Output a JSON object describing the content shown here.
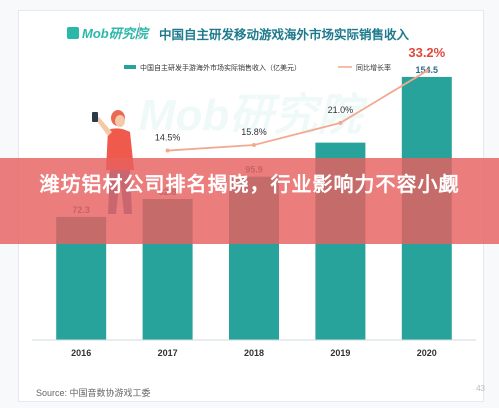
{
  "header": {
    "logo_text": "Mob研究院",
    "title": "中国自主研发移动游戏海外市场实际销售收入"
  },
  "banner": {
    "text": "潍坊铝材公司排名揭晓，行业影响力不容小觑"
  },
  "footer": {
    "source": "Source:   中国音数协游戏工委",
    "page_number": "43"
  },
  "watermark": "Mob研究院",
  "chart_data": {
    "type": "bar",
    "categories": [
      "2016",
      "2017",
      "2018",
      "2019",
      "2020"
    ],
    "series": [
      {
        "name": "中国自主研发手游海外市场实际销售收入（亿美元）",
        "kind": "bar",
        "color": "#27a39b",
        "values": [
          72.3,
          82.8,
          95.9,
          115.9,
          154.5
        ],
        "labels": [
          "72.3",
          "82.8",
          "95.9",
          "",
          "154.5"
        ]
      },
      {
        "name": "同比增长率",
        "kind": "line",
        "color": "#f2a98e",
        "values": [
          null,
          14.5,
          15.8,
          21.0,
          33.2
        ],
        "labels": [
          "",
          "14.5%",
          "15.8%",
          "21.0%",
          "33.2%"
        ]
      }
    ],
    "ylim": [
      0,
      175
    ],
    "y2lim": [
      -30,
      40
    ],
    "highlight": {
      "index": 4,
      "color": "#e0473d"
    },
    "grid": false,
    "legend": "top"
  }
}
